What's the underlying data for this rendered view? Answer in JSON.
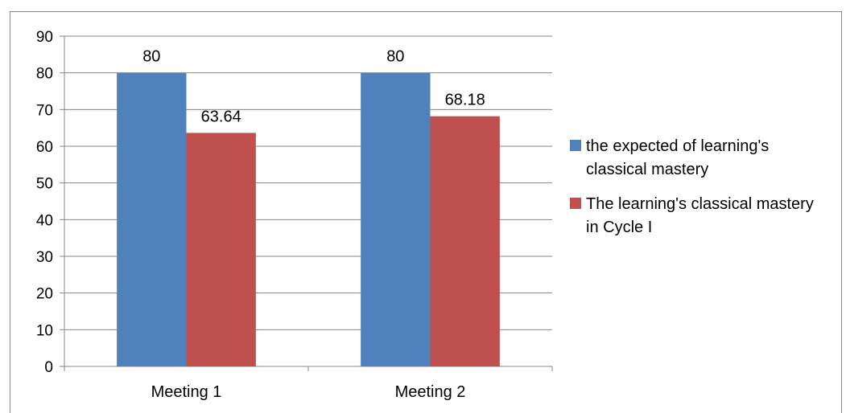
{
  "chart_data": {
    "type": "bar",
    "categories": [
      "Meeting 1",
      "Meeting 2"
    ],
    "series": [
      {
        "name": "the expected of learning's classical mastery",
        "values": [
          80,
          80
        ],
        "color": "#4f81bd"
      },
      {
        "name": "The learning's classical mastery in Cycle I",
        "values": [
          63.64,
          68.18
        ],
        "color": "#c0504d"
      }
    ],
    "data_labels": [
      [
        "80",
        "80"
      ],
      [
        "63.64",
        "68.18"
      ]
    ],
    "y_ticks": [
      "0",
      "10",
      "20",
      "30",
      "40",
      "50",
      "60",
      "70",
      "80",
      "90"
    ],
    "ylim": [
      0,
      90
    ],
    "grid": true,
    "legend_position": "right"
  }
}
